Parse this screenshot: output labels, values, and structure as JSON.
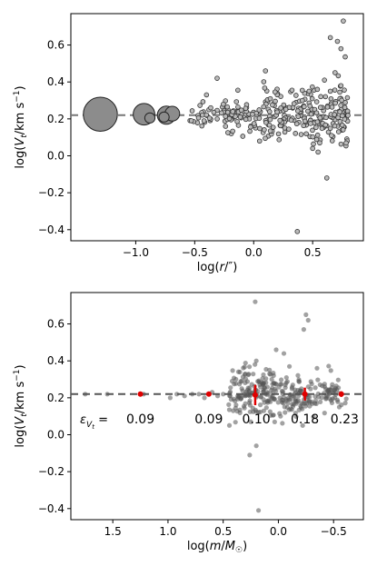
{
  "chart_data": [
    {
      "type": "scatter",
      "xlabel": "log(r/″)",
      "ylabel": "log(V_t/km s⁻¹)",
      "xlim": [
        -1.55,
        0.93
      ],
      "ylim": [
        -0.46,
        0.77
      ],
      "xticks": [
        -1.0,
        -0.5,
        0.0,
        0.5
      ],
      "xtick_labels": [
        "−1.0",
        "−0.5",
        "0.0",
        "0.5"
      ],
      "yticks": [
        -0.4,
        -0.2,
        0.0,
        0.2,
        0.4,
        0.6
      ],
      "ytick_labels": [
        "−0.4",
        "−0.2",
        "0.0",
        "0.2",
        "0.4",
        "0.6"
      ],
      "reference_line_y": 0.22,
      "large_points": [
        {
          "x": -1.3,
          "y": 0.225,
          "size": 3.0
        },
        {
          "x": -0.93,
          "y": 0.225,
          "size": 1.9
        },
        {
          "x": -0.74,
          "y": 0.22,
          "size": 1.6
        },
        {
          "x": -0.69,
          "y": 0.228,
          "size": 1.3
        },
        {
          "x": -0.88,
          "y": 0.205,
          "size": 0.9
        },
        {
          "x": -0.76,
          "y": 0.21,
          "size": 0.9
        }
      ],
      "outliers": [
        {
          "x": 0.76,
          "y": 0.73
        },
        {
          "x": 0.65,
          "y": 0.64
        },
        {
          "x": 0.71,
          "y": 0.62
        },
        {
          "x": 0.74,
          "y": 0.58
        },
        {
          "x": 0.1,
          "y": 0.46
        },
        {
          "x": 0.69,
          "y": 0.45
        },
        {
          "x": -0.31,
          "y": 0.42
        },
        {
          "x": 0.6,
          "y": 0.41
        },
        {
          "x": 0.74,
          "y": 0.38
        },
        {
          "x": -0.4,
          "y": 0.33
        },
        {
          "x": 0.65,
          "y": 0.35
        },
        {
          "x": 0.54,
          "y": 0.36
        },
        {
          "x": 0.47,
          "y": 0.35
        },
        {
          "x": 0.56,
          "y": 0.07
        },
        {
          "x": 0.5,
          "y": 0.04
        },
        {
          "x": 0.66,
          "y": 0.11
        },
        {
          "x": 0.62,
          "y": -0.12
        },
        {
          "x": 0.37,
          "y": -0.41
        },
        {
          "x": 0.05,
          "y": 0.08
        },
        {
          "x": 0.72,
          "y": 0.13
        }
      ],
      "cloud": {
        "n": 300,
        "x_range": [
          -0.55,
          0.8
        ],
        "y_center": 0.22,
        "y_spread": 0.05,
        "seed": 7
      }
    },
    {
      "type": "scatter",
      "xlabel": "log(m/M☉)",
      "ylabel": "log(V_t/km s⁻¹)",
      "xlim": [
        1.88,
        -0.77
      ],
      "ylim": [
        -0.46,
        0.77
      ],
      "xticks": [
        1.5,
        1.0,
        0.5,
        0.0,
        -0.5
      ],
      "xtick_labels": [
        "1.5",
        "1.0",
        "0.5",
        "0.0",
        "−0.5"
      ],
      "yticks": [
        -0.4,
        -0.2,
        0.0,
        0.2,
        0.4,
        0.6
      ],
      "ytick_labels": [
        "−0.4",
        "−0.2",
        "0.0",
        "0.2",
        "0.4",
        "0.6"
      ],
      "reference_line_y": 0.22,
      "epsilon_label": "εVt =",
      "epsilon_values": [
        {
          "x": 1.25,
          "label": "0.09"
        },
        {
          "x": 0.63,
          "label": "0.09"
        },
        {
          "x": 0.2,
          "label": "0.10"
        },
        {
          "x": -0.24,
          "label": "0.18"
        },
        {
          "x": -0.6,
          "label": "0.23"
        }
      ],
      "red_points": [
        {
          "x": 1.25,
          "y": 0.22,
          "err": 0.01
        },
        {
          "x": 0.63,
          "y": 0.22,
          "err": 0.012
        },
        {
          "x": 0.21,
          "y": 0.215,
          "err": 0.055
        },
        {
          "x": -0.24,
          "y": 0.22,
          "err": 0.035
        },
        {
          "x": -0.57,
          "y": 0.22,
          "err": 0.015
        }
      ],
      "outliers": [
        {
          "x": 0.21,
          "y": 0.72
        },
        {
          "x": -0.25,
          "y": 0.65
        },
        {
          "x": -0.27,
          "y": 0.62
        },
        {
          "x": -0.23,
          "y": 0.57
        },
        {
          "x": 0.02,
          "y": 0.46
        },
        {
          "x": -0.05,
          "y": 0.44
        },
        {
          "x": 0.2,
          "y": 0.4
        },
        {
          "x": 0.3,
          "y": 0.33
        },
        {
          "x": -0.1,
          "y": 0.37
        },
        {
          "x": 0.08,
          "y": 0.35
        },
        {
          "x": -0.35,
          "y": 0.36
        },
        {
          "x": 0.25,
          "y": 0.07
        },
        {
          "x": 0.26,
          "y": -0.11
        },
        {
          "x": 0.2,
          "y": -0.06
        },
        {
          "x": 0.18,
          "y": -0.41
        },
        {
          "x": -0.22,
          "y": 0.05
        },
        {
          "x": -0.02,
          "y": 0.1
        },
        {
          "x": 0.06,
          "y": 0.3
        }
      ],
      "cloud": {
        "n": 300,
        "x_range": [
          -0.62,
          0.45
        ],
        "y_center": 0.22,
        "y_spread": 0.05,
        "seed": 11
      },
      "sparse_points": [
        {
          "x": 1.75,
          "y": 0.22
        },
        {
          "x": 1.55,
          "y": 0.22
        },
        {
          "x": 1.22,
          "y": 0.22
        },
        {
          "x": 0.98,
          "y": 0.2
        },
        {
          "x": 0.92,
          "y": 0.22
        },
        {
          "x": 0.85,
          "y": 0.21
        },
        {
          "x": 0.78,
          "y": 0.22
        },
        {
          "x": 0.72,
          "y": 0.22
        },
        {
          "x": 0.67,
          "y": 0.2
        },
        {
          "x": 0.6,
          "y": 0.23
        },
        {
          "x": 0.55,
          "y": 0.21
        },
        {
          "x": 0.5,
          "y": 0.22
        }
      ]
    }
  ]
}
